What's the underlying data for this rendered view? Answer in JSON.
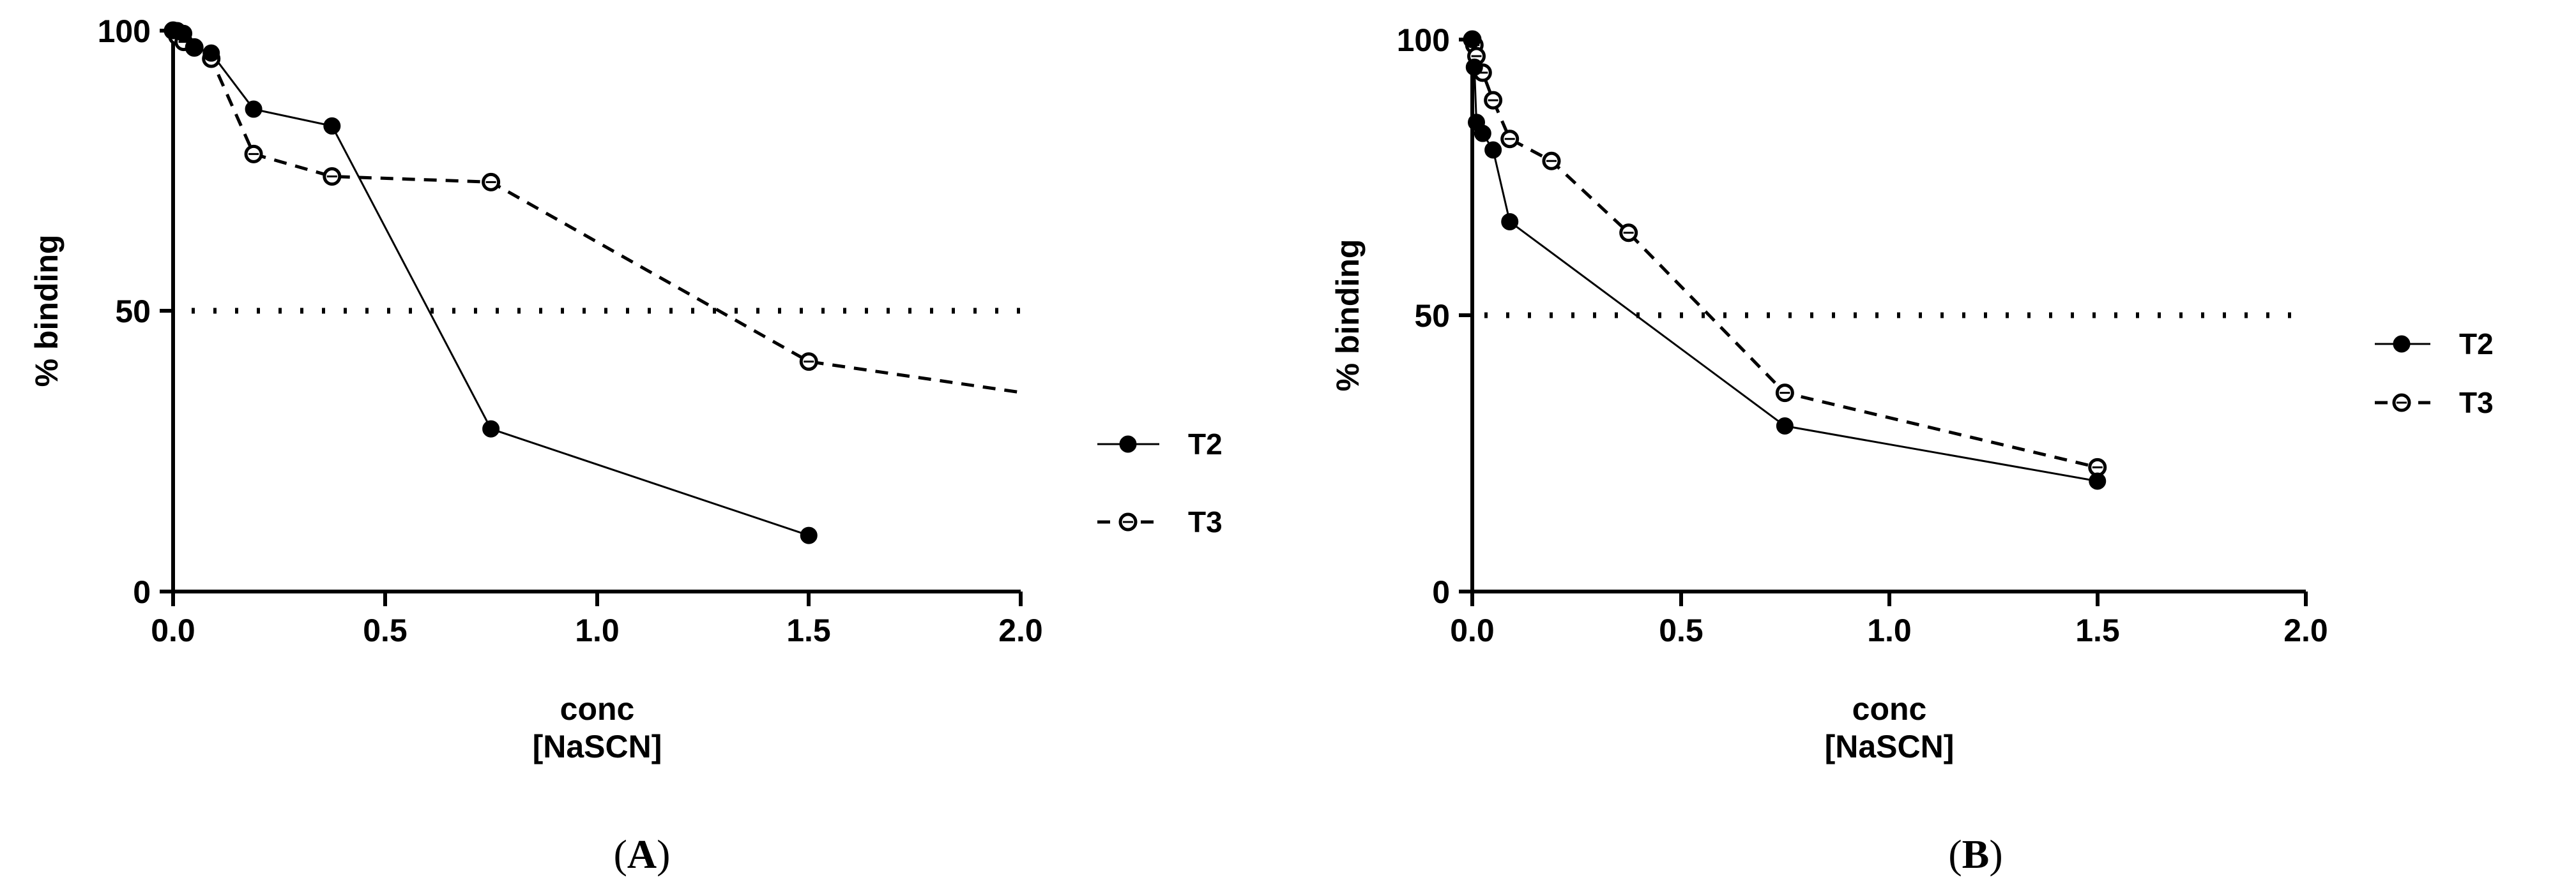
{
  "chart_data": [
    {
      "panel": "A",
      "type": "line",
      "xlabel": [
        "conc",
        "[NaSCN]"
      ],
      "ylabel": "% binding",
      "xlim": [
        0,
        2
      ],
      "ylim": [
        0,
        100
      ],
      "xticks": [
        "0.0",
        "0.5",
        "1.0",
        "1.5",
        "2.0"
      ],
      "yticks": [
        "0",
        "50",
        "100"
      ],
      "reference_line": 50,
      "legend_position": "right",
      "series": [
        {
          "name": "T2",
          "style": "solid-filled",
          "x": [
            0,
            0.01,
            0.025,
            0.05,
            0.09,
            0.19,
            0.375,
            0.75,
            1.5
          ],
          "y": [
            100,
            100,
            99.5,
            97,
            96,
            86,
            83,
            29,
            10
          ]
        },
        {
          "name": "T3",
          "style": "dashed-open",
          "x": [
            0,
            0.01,
            0.025,
            0.05,
            0.09,
            0.19,
            0.375,
            0.75,
            1.5,
            2.0
          ],
          "y": [
            100,
            99,
            98,
            97,
            95,
            78,
            74,
            73,
            41,
            35.5
          ]
        }
      ]
    },
    {
      "panel": "B",
      "type": "line",
      "xlabel": [
        "conc",
        "[NaSCN]"
      ],
      "ylabel": "% binding",
      "xlim": [
        0,
        2
      ],
      "ylim": [
        0,
        100
      ],
      "xticks": [
        "0.0",
        "0.5",
        "1.0",
        "1.5",
        "2.0"
      ],
      "yticks": [
        "0",
        "50",
        "100"
      ],
      "reference_line": 50,
      "legend_position": "right",
      "series": [
        {
          "name": "T2",
          "style": "solid-filled",
          "x": [
            0,
            0.005,
            0.01,
            0.025,
            0.05,
            0.09,
            0.75,
            1.5
          ],
          "y": [
            100,
            95,
            85,
            83,
            80,
            67,
            30,
            20
          ]
        },
        {
          "name": "T3",
          "style": "dashed-open",
          "x": [
            0,
            0.005,
            0.01,
            0.025,
            0.05,
            0.09,
            0.19,
            0.375,
            0.75,
            1.5
          ],
          "y": [
            100,
            99,
            97,
            94,
            89,
            82,
            78,
            65,
            36,
            22.5
          ]
        }
      ]
    }
  ],
  "panel_labels": [
    {
      "open": "(",
      "letter": "A",
      "close": ")"
    },
    {
      "open": "(",
      "letter": "B",
      "close": ")"
    }
  ]
}
